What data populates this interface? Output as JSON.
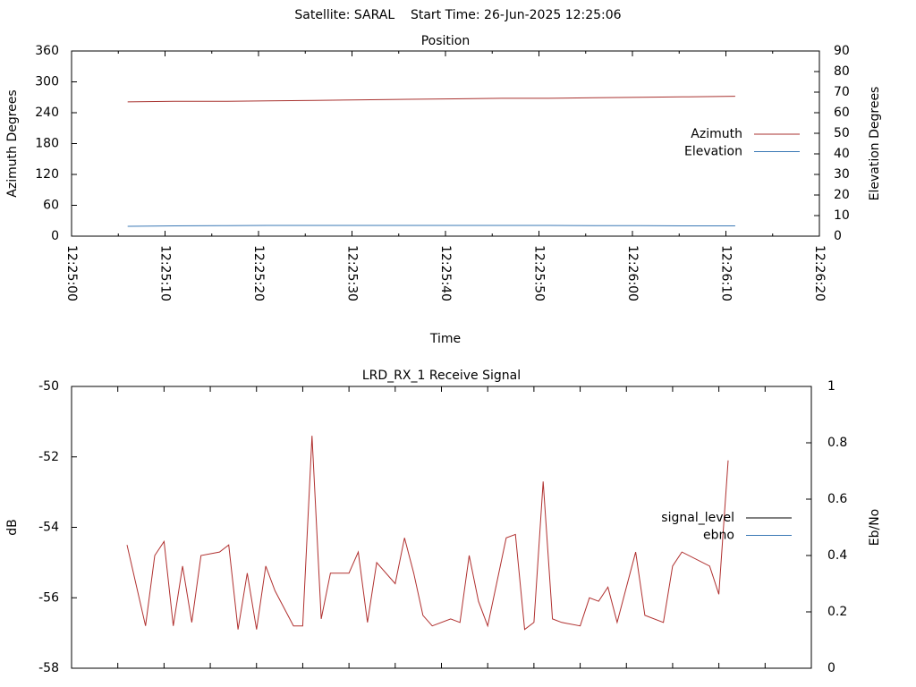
{
  "title": "Satellite: SARAL    Start Time: 26-Jun-2025 12:25:06",
  "chart_data": [
    {
      "type": "line",
      "title": "Position",
      "xlabel": "Time",
      "ylabel": "Azimuth Degrees",
      "y2label": "Elevation Degrees",
      "x": [
        "12:25:06",
        "12:25:11",
        "12:25:16",
        "12:25:21",
        "12:25:26",
        "12:25:31",
        "12:25:36",
        "12:25:41",
        "12:25:46",
        "12:25:51",
        "12:25:56",
        "12:26:01",
        "12:26:06",
        "12:26:11"
      ],
      "xlim": [
        "12:25:00",
        "12:26:20"
      ],
      "xticks": [
        "12:25:00",
        "12:25:10",
        "12:25:20",
        "12:25:30",
        "12:25:40",
        "12:25:50",
        "12:26:00",
        "12:26:10",
        "12:26:20"
      ],
      "ylim": [
        0,
        360
      ],
      "yticks": [
        0,
        60,
        120,
        180,
        240,
        300,
        360
      ],
      "y2lim": [
        0,
        90
      ],
      "y2ticks": [
        0,
        10,
        20,
        30,
        40,
        50,
        60,
        70,
        80,
        90
      ],
      "legend": "right",
      "series": [
        {
          "name": "Azimuth",
          "color": "#a8322f",
          "values": [
            261,
            262,
            262,
            263,
            264,
            265,
            266,
            267,
            268,
            268,
            269,
            270,
            271,
            272
          ]
        },
        {
          "name": "Elevation",
          "color": "#3a78b5",
          "axis": "y2",
          "values": [
            4.8,
            5.0,
            5.1,
            5.2,
            5.2,
            5.2,
            5.2,
            5.2,
            5.2,
            5.2,
            5.1,
            5.1,
            5.0,
            5.0
          ]
        }
      ]
    },
    {
      "type": "line",
      "title": "LRD_RX_1 Receive Signal",
      "ylabel": "dB",
      "y2label": "Eb/No",
      "x": [
        "12:25:06",
        "12:25:08",
        "12:25:09",
        "12:25:10",
        "12:25:11",
        "12:25:12",
        "12:25:13",
        "12:25:14",
        "12:25:16",
        "12:25:17",
        "12:25:18",
        "12:25:19",
        "12:25:20",
        "12:25:21",
        "12:25:22",
        "12:25:24",
        "12:25:25",
        "12:25:26",
        "12:25:27",
        "12:25:28",
        "12:25:30",
        "12:25:31",
        "12:25:32",
        "12:25:33",
        "12:25:35",
        "12:25:36",
        "12:25:37",
        "12:25:38",
        "12:25:39",
        "12:25:41",
        "12:25:42",
        "12:25:43",
        "12:25:44",
        "12:25:45",
        "12:25:47",
        "12:25:48",
        "12:25:49",
        "12:25:50",
        "12:25:51",
        "12:25:52",
        "12:25:53",
        "12:25:55",
        "12:25:56",
        "12:25:57",
        "12:25:58",
        "12:25:59",
        "12:26:01",
        "12:26:02",
        "12:26:04",
        "12:26:05",
        "12:26:06",
        "12:26:09",
        "12:26:10",
        "12:26:11"
      ],
      "xlim": [
        "12:25:00",
        "12:26:20"
      ],
      "xticks": [
        "12:25:05",
        "12:25:10",
        "12:25:15",
        "12:25:20",
        "12:25:25",
        "12:25:30",
        "12:25:35",
        "12:25:40",
        "12:25:45",
        "12:25:50",
        "12:25:55",
        "12:26:00",
        "12:26:05",
        "12:26:10",
        "12:26:15"
      ],
      "xtick_labels": false,
      "ylim": [
        -58,
        -50
      ],
      "yticks": [
        -58,
        -56,
        -54,
        -52,
        -50
      ],
      "y2lim": [
        0,
        1
      ],
      "y2ticks": [
        0,
        0.2,
        0.4,
        0.6,
        0.8,
        1
      ],
      "legend": "right",
      "series": [
        {
          "name": "signal_level",
          "color": "#b0302f",
          "legend_color": "#000000",
          "values": [
            -54.5,
            -56.8,
            -54.8,
            -54.4,
            -56.8,
            -55.1,
            -56.7,
            -54.8,
            -54.7,
            -54.5,
            -56.9,
            -55.3,
            -56.9,
            -55.1,
            -55.8,
            -56.8,
            -56.8,
            -51.4,
            -56.6,
            -55.3,
            -55.3,
            -54.7,
            -56.7,
            -55.0,
            -55.6,
            -54.3,
            -55.3,
            -56.5,
            -56.8,
            -56.6,
            -56.7,
            -54.8,
            -56.1,
            -56.8,
            -54.3,
            -54.2,
            -56.9,
            -56.7,
            -52.7,
            -56.6,
            -56.7,
            -56.8,
            -56.0,
            -56.1,
            -55.7,
            -56.7,
            -54.7,
            -56.5,
            -56.7,
            -55.1,
            -54.7,
            -55.1,
            -55.9,
            -52.1
          ]
        },
        {
          "name": "ebno",
          "color": "#3a78b5",
          "axis": "y2",
          "values": [
            null,
            null,
            null,
            null,
            null,
            null,
            null,
            null,
            null,
            null,
            null,
            null,
            null,
            null,
            null,
            null,
            null,
            null,
            null,
            null,
            null,
            null,
            null,
            null,
            null,
            null,
            null,
            null,
            null,
            null,
            null,
            null,
            null,
            null,
            null,
            null,
            null,
            null,
            null,
            null,
            null,
            null,
            null,
            null,
            null,
            null,
            null,
            null,
            null,
            null,
            null,
            null,
            null,
            null
          ]
        }
      ]
    }
  ]
}
